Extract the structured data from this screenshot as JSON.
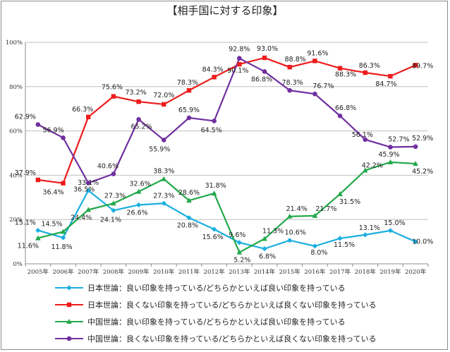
{
  "chart_data": {
    "type": "line",
    "title": "【相手国に対する印象】",
    "xlabel": "",
    "ylabel": "",
    "ylim": [
      0,
      100
    ],
    "y_ticks": [
      "0%",
      "20%",
      "40%",
      "60%",
      "80%",
      "100%"
    ],
    "grid": true,
    "legend_position": "bottom",
    "categories": [
      "2005年",
      "2006年",
      "2007年",
      "2008年",
      "2009年",
      "2010年",
      "2011年",
      "2012年",
      "2013年",
      "2014年",
      "2015年",
      "2016年",
      "2017年",
      "2018年",
      "2019年",
      "2020年"
    ],
    "series": [
      {
        "name": "日本世論：良い印象を持っている/どちらかといえば良い印象を持っている",
        "color": "#1aaee0",
        "marker": "diamond",
        "values": [
          15.1,
          11.8,
          33.1,
          24.1,
          26.6,
          27.3,
          20.8,
          15.6,
          9.6,
          6.8,
          10.6,
          8.0,
          11.5,
          13.1,
          15.0,
          10.0
        ],
        "labels": [
          "15.1%",
          "11.8%",
          "33.1%",
          "24.1%",
          "26.6%",
          "27.3%",
          "20.8%",
          "15.6%",
          "9.6%",
          "6.8%",
          "10.6%",
          "8.0%",
          "11.5%",
          "13.1%",
          "15.0%",
          "10.0%"
        ]
      },
      {
        "name": "日本世論：良くない印象を持っている/どちらかといえば良くない印象を持っている",
        "color": "#ee1c1c",
        "marker": "square",
        "values": [
          37.9,
          36.4,
          66.3,
          75.6,
          73.2,
          72.0,
          78.3,
          84.3,
          90.1,
          93.0,
          88.8,
          91.6,
          88.3,
          86.3,
          84.7,
          89.7
        ],
        "labels": [
          "37.9%",
          "36.4%",
          "66.3%",
          "75.6%",
          "73.2%",
          "72.0%",
          "78.3%",
          "84.3%",
          "90.1%",
          "93.0%",
          "88.8%",
          "91.6%",
          "88.3%",
          "86.3%",
          "84.7%",
          "89.7%"
        ]
      },
      {
        "name": "中国世論：良い印象を持っている/どちらかといえば良い印象を持っている",
        "color": "#22a84a",
        "marker": "triangle",
        "values": [
          11.6,
          14.5,
          24.4,
          27.3,
          32.6,
          38.3,
          28.6,
          31.8,
          5.2,
          11.3,
          21.4,
          21.7,
          31.5,
          42.2,
          45.9,
          45.2
        ],
        "labels": [
          "11.6%",
          "14.5%",
          "24.4%",
          "27.3%",
          "32.6%",
          "38.3%",
          "28.6%",
          "31.8%",
          "5.2%",
          "11.3%",
          "21.4%",
          "21.7%",
          "31.5%",
          "42.2%",
          "45.9%",
          "45.2%"
        ]
      },
      {
        "name": "中国世論：良くない印象を持っている/どちらかといえば良くない印象を持っている",
        "color": "#7030a0",
        "marker": "circle",
        "values": [
          62.9,
          56.9,
          36.5,
          40.6,
          65.2,
          55.9,
          65.9,
          64.5,
          92.8,
          86.8,
          78.3,
          76.7,
          66.8,
          56.1,
          52.7,
          52.9
        ],
        "labels": [
          "62.9%",
          "56.9%",
          "36.5%",
          "40.6%",
          "65.2%",
          "55.9%",
          "65.9%",
          "64.5%",
          "92.8%",
          "86.8%",
          "78.3%",
          "76.7%",
          "66.8%",
          "56.1%",
          "52.7%",
          "52.9%"
        ]
      }
    ]
  }
}
